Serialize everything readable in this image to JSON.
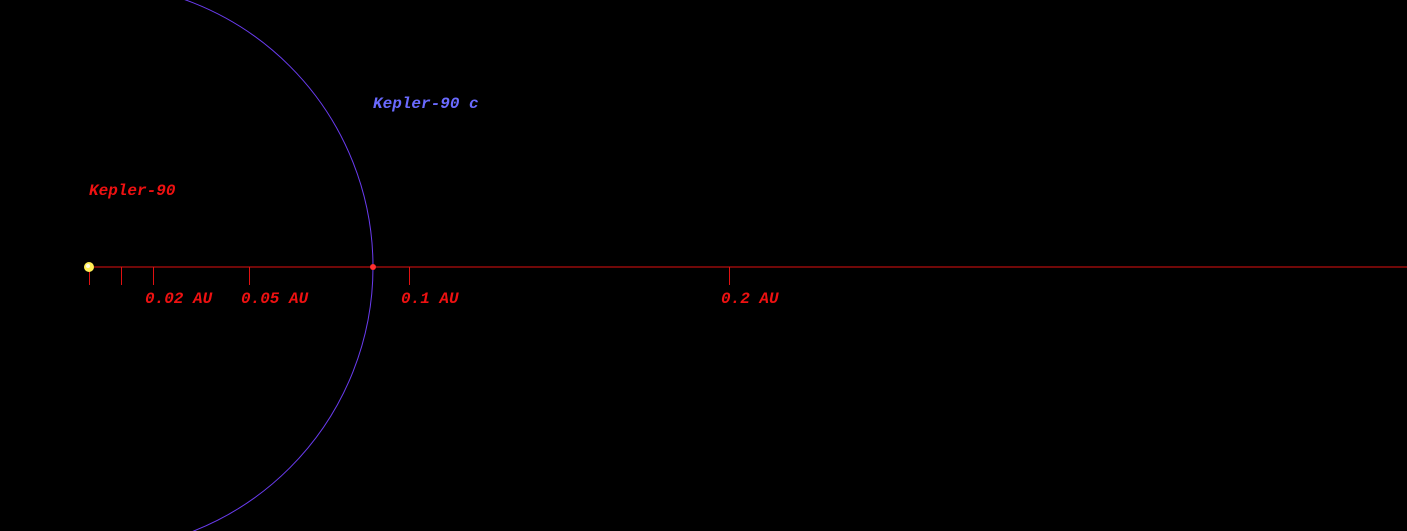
{
  "star": {
    "label": "Kepler-90"
  },
  "planet": {
    "label": "Kepler-90 c"
  },
  "scale": {
    "tick_labels": [
      "0.02 AU",
      "0.05 AU",
      "0.1 AU",
      "0.2 AU"
    ]
  }
}
